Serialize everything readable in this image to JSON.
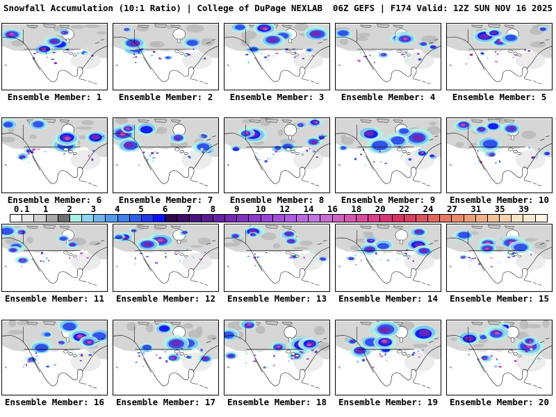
{
  "header": {
    "left": "Snowfall Accumulation (10:1 Ratio) | College of DuPage NEXLAB",
    "right": "06Z GEFS | F174 Valid: 12Z SUN NOV 16 2025"
  },
  "panels": [
    {
      "member": 1,
      "label": "Ensemble Member: 1"
    },
    {
      "member": 2,
      "label": "Ensemble Member: 2"
    },
    {
      "member": 3,
      "label": "Ensemble Member: 3"
    },
    {
      "member": 4,
      "label": "Ensemble Member: 4"
    },
    {
      "member": 5,
      "label": "Ensemble Member: 5"
    },
    {
      "member": 6,
      "label": "Ensemble Member: 6"
    },
    {
      "member": 7,
      "label": "Ensemble Member: 7"
    },
    {
      "member": 8,
      "label": "Ensemble Member: 8"
    },
    {
      "member": 9,
      "label": "Ensemble Member: 9"
    },
    {
      "member": 10,
      "label": "Ensemble Member: 10"
    },
    {
      "member": 11,
      "label": "Ensemble Member: 11"
    },
    {
      "member": 12,
      "label": "Ensemble Member: 12"
    },
    {
      "member": 13,
      "label": "Ensemble Member: 13"
    },
    {
      "member": 14,
      "label": "Ensemble Member: 14"
    },
    {
      "member": 15,
      "label": "Ensemble Member: 15"
    },
    {
      "member": 16,
      "label": "Ensemble Member: 16"
    },
    {
      "member": 17,
      "label": "Ensemble Member: 17"
    },
    {
      "member": 18,
      "label": "Ensemble Member: 18"
    },
    {
      "member": 19,
      "label": "Ensemble Member: 19"
    },
    {
      "member": 20,
      "label": "Ensemble Member: 20"
    }
  ],
  "colorbar": {
    "labels": [
      "0.1",
      "1",
      "2",
      "3",
      "4",
      "5",
      "6",
      "7",
      "8",
      "9",
      "10",
      "12",
      "14",
      "16",
      "18",
      "20",
      "22",
      "24",
      "27",
      "31",
      "35",
      "39"
    ],
    "segments": [
      "#ffffff",
      "#e8e8e8",
      "#d2d2d2",
      "#a8a8a8",
      "#6f6f6f",
      "#aaf0e1",
      "#8fd4ef",
      "#70b5f2",
      "#539af0",
      "#3f7eeb",
      "#2c60e6",
      "#1d3ce8",
      "#0a12fa",
      "#2f084e",
      "#3d0d67",
      "#4b137e",
      "#591a92",
      "#6622a5",
      "#722ab2",
      "#7f32c0",
      "#8b3bcc",
      "#9745d6",
      "#a350dc",
      "#af5ce2",
      "#bb67e2",
      "#c573de",
      "#cb6cd2",
      "#d162c2",
      "#d557ae",
      "#d84c9b",
      "#da4089",
      "#db3577",
      "#d83367",
      "#d54060",
      "#db525f",
      "#e0665c",
      "#e67a62",
      "#ea8c6c",
      "#ee9e79",
      "#f1b089",
      "#f2c29b",
      "#f4d3ae",
      "#f7e3c3",
      "#f9ecd4",
      "#fdf5e4"
    ]
  },
  "map": {
    "palette": {
      "land": "#d6d6d6",
      "land_lobe": "#d9d9d9",
      "land_light": "#e7e7e7",
      "terrain": "#b5b5b5",
      "island": "#c8c8c8",
      "water": "#ffffff",
      "coast": "#000000",
      "snow_cyan": "#b2f0e6",
      "snow_lightblue": "#7fc0f2",
      "snow_blue": "#2b49e8",
      "snow_deepblue": "#0a12f0",
      "snow_purple": "#6f28b4",
      "snow_magenta": "#c24fc0"
    }
  }
}
